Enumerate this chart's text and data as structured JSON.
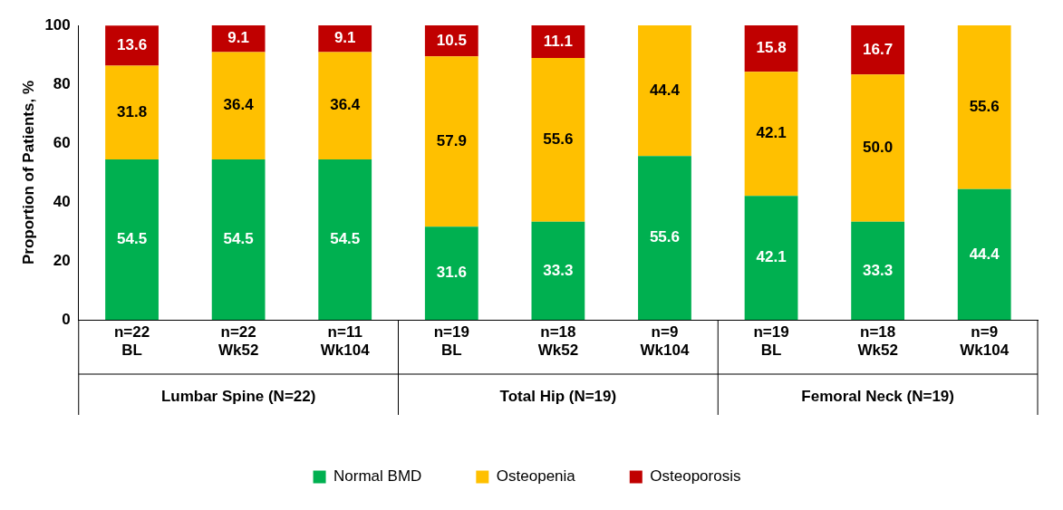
{
  "chart_data": {
    "type": "bar",
    "stacked": true,
    "ylabel": "Proportion of Patients, %",
    "categories": [
      "n=22 BL",
      "n=22 Wk52",
      "n=11 Wk104",
      "n=19 BL",
      "n=18 Wk52",
      "n=9 Wk104",
      "n=19 BL",
      "n=18 Wk52",
      "n=9 Wk104"
    ],
    "annotations": [
      "Lumbar Spine (N=22)",
      "Total Hip (N=19)",
      "Femoral Neck (N=19)"
    ],
    "series": [
      {
        "name": "Normal BMD",
        "color": "#00b050",
        "values": [
          54.5,
          54.5,
          54.5,
          31.6,
          33.3,
          55.6,
          42.1,
          33.3,
          44.4
        ],
        "value_labels": [
          "54.5",
          "54.5",
          "54.5",
          "31.6",
          "33.3",
          "55.6",
          "42.1",
          "33.3",
          "44.4"
        ]
      },
      {
        "name": "Osteopenia",
        "color": "#ffc000",
        "values": [
          31.8,
          36.4,
          36.4,
          57.9,
          55.6,
          44.4,
          42.1,
          50.0,
          55.6
        ],
        "value_labels": [
          "31.8",
          "36.4",
          "36.4",
          "57.9",
          "55.6",
          "44.4",
          "42.1",
          "50.0",
          "55.6"
        ]
      },
      {
        "name": "Osteoporosis",
        "color": "#c00000",
        "values": [
          13.6,
          9.1,
          9.1,
          10.5,
          11.1,
          null,
          15.8,
          16.7,
          null
        ],
        "value_labels": [
          "13.6",
          "9.1",
          "9.1",
          "10.5",
          "11.1",
          null,
          "15.8",
          "16.7",
          null
        ]
      }
    ],
    "ylim": [
      0,
      100
    ],
    "yticks": [
      0,
      20,
      40,
      60,
      80,
      100
    ],
    "grid": false,
    "legend": "bottom"
  }
}
